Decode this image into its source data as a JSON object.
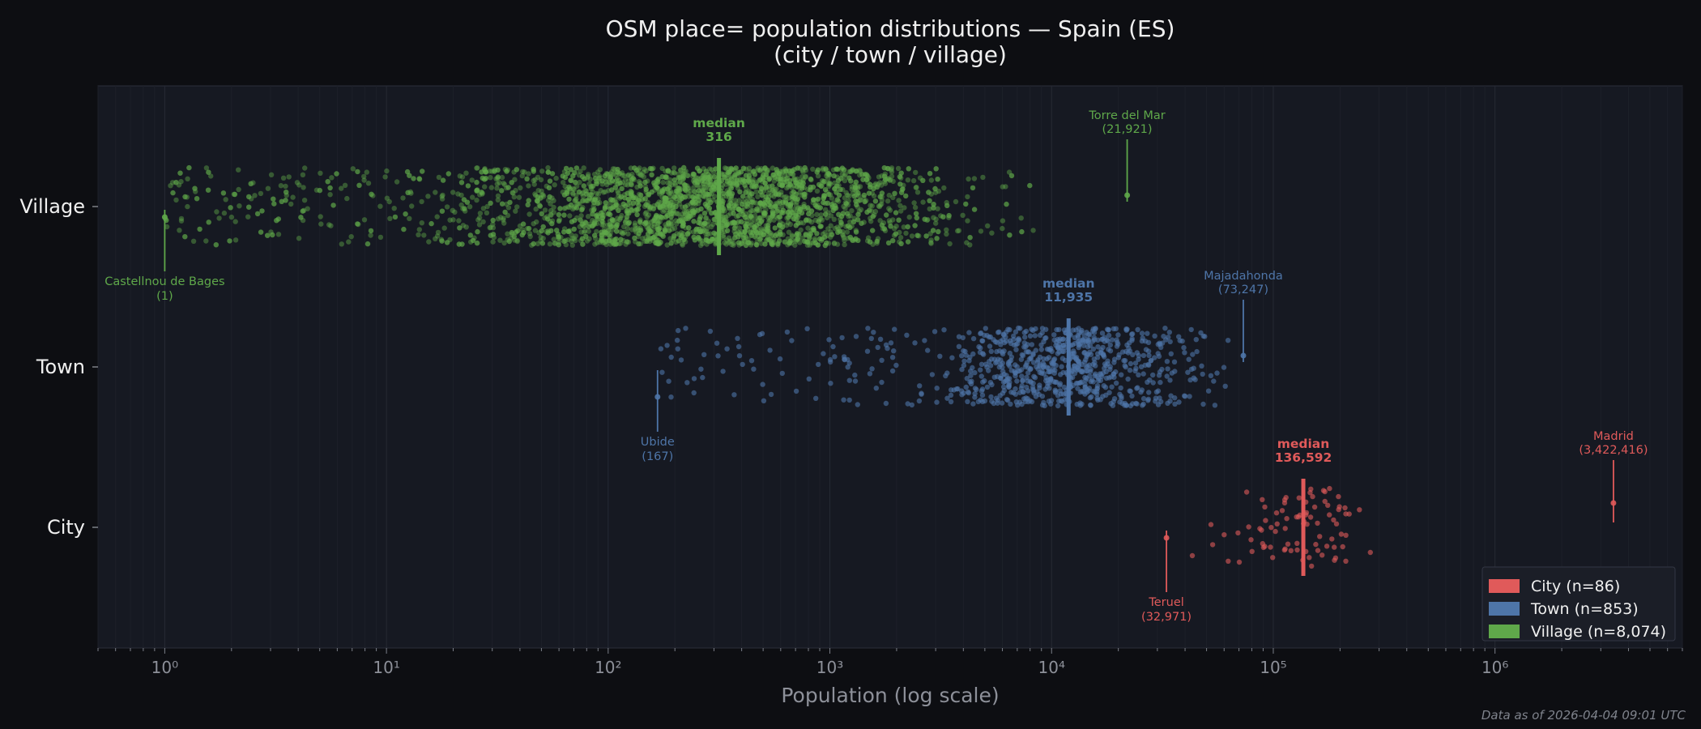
{
  "chart_data": {
    "type": "scatter",
    "title": "OSM place= population distributions — Spain (ES)",
    "subtitle": "(city / town / village)",
    "xlabel": "Population (log scale)",
    "x_scale": "log",
    "xlim": [
      0.5,
      7000000
    ],
    "x_ticks": [
      {
        "value": 1,
        "label": "10⁰"
      },
      {
        "value": 10,
        "label": "10¹"
      },
      {
        "value": 100,
        "label": "10²"
      },
      {
        "value": 1000,
        "label": "10³"
      },
      {
        "value": 10000,
        "label": "10⁴"
      },
      {
        "value": 100000,
        "label": "10⁵"
      },
      {
        "value": 1000000,
        "label": "10⁶"
      }
    ],
    "categories": [
      "Village",
      "Town",
      "City"
    ],
    "grid": true,
    "legend_position": "bottom-right",
    "series": [
      {
        "category": "Village",
        "legend": "Village  (n=8,074)",
        "n": 8074,
        "color": "#5fa84a",
        "min": 1,
        "max": 21921,
        "core_range": [
          20,
          10000
        ],
        "median": 316,
        "median_value_label": "316",
        "annotations": [
          {
            "name": "Castellnou de Bages",
            "value": 1,
            "value_label": "(1)",
            "side": "below"
          },
          {
            "name": "Torre del Mar",
            "value": 21921,
            "value_label": "(21,921)",
            "side": "above"
          }
        ]
      },
      {
        "category": "Town",
        "legend": "Town  (n=853)",
        "n": 853,
        "color": "#4e75a8",
        "min": 167,
        "max": 73247,
        "core_range": [
          1000,
          73247
        ],
        "median": 11935,
        "median_value_label": "11,935",
        "annotations": [
          {
            "name": "Ubide",
            "value": 167,
            "value_label": "(167)",
            "side": "below"
          },
          {
            "name": "Majadahonda",
            "value": 73247,
            "value_label": "(73,247)",
            "side": "above"
          }
        ]
      },
      {
        "category": "City",
        "legend": "City  (n=86)",
        "n": 86,
        "color": "#e05a5a",
        "min": 32971,
        "max": 3422416,
        "core_range": [
          40000,
          400000
        ],
        "median": 136592,
        "median_value_label": "136,592",
        "annotations": [
          {
            "name": "Teruel",
            "value": 32971,
            "value_label": "(32,971)",
            "side": "below"
          },
          {
            "name": "Madrid",
            "value": 3422416,
            "value_label": "(3,422,416)",
            "side": "above"
          }
        ]
      }
    ],
    "median_label": "median",
    "legend_order": [
      "City",
      "Town",
      "Village"
    ]
  },
  "footer": "Data as of 2026-04-04 09:01 UTC"
}
